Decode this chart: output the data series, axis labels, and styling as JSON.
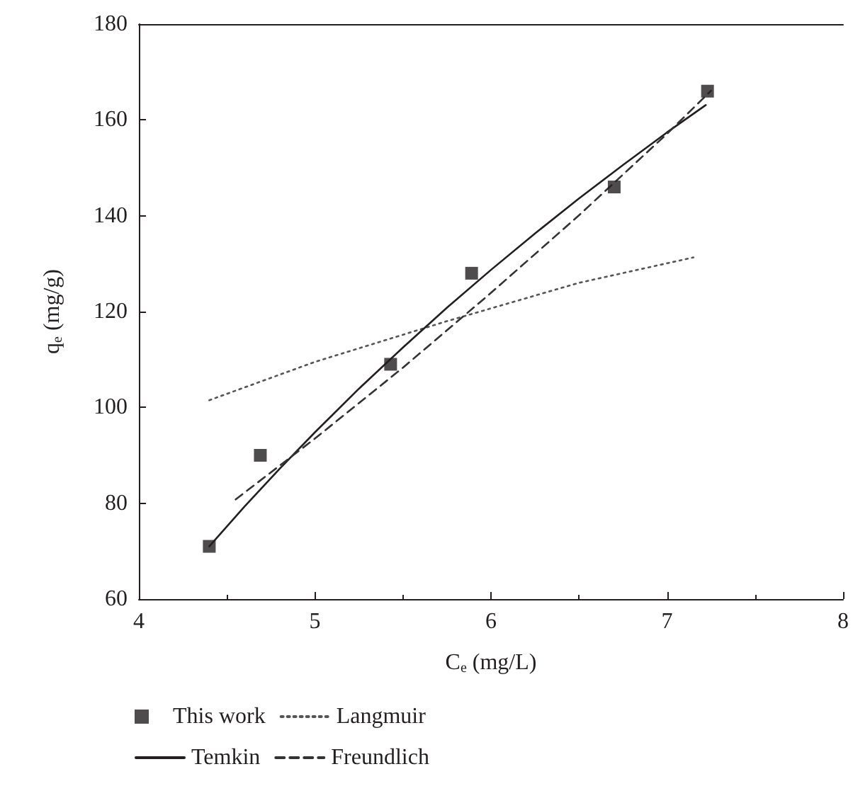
{
  "chart_data": {
    "type": "line",
    "xlabel": "C$_{e}$ (mg/L)",
    "ylabel": "q$_{e}$ (mg/g)",
    "xlim": [
      4,
      8
    ],
    "xticks": [
      4,
      5,
      6,
      7,
      8
    ],
    "ylim": [
      60,
      180
    ],
    "yticks": [
      60,
      80,
      100,
      120,
      140,
      160,
      180
    ],
    "grid": false,
    "legend": "bottom",
    "series": [
      {
        "name": "This work",
        "type": "scatter",
        "marker": "square",
        "color": "#231f20",
        "x": [
          4.4,
          4.69,
          5.43,
          5.89,
          6.7,
          7.23
        ],
        "values": [
          71,
          90,
          109,
          128,
          146,
          166
        ]
      },
      {
        "name": "Langmuir",
        "line_style": "dotted",
        "marker": "none",
        "color": "#555555",
        "x": [
          4.4,
          5.0,
          5.75,
          6.5,
          7.15
        ],
        "values": [
          101.5,
          109.5,
          118,
          126,
          131.3
        ]
      },
      {
        "name": "Temkin",
        "line_style": "solid",
        "marker": "none",
        "color": "#231f20",
        "x": [
          4.4,
          4.6,
          4.8,
          5.0,
          5.25,
          5.5,
          5.75,
          6.0,
          6.25,
          6.5,
          6.75,
          7.0,
          7.22
        ],
        "values": [
          71,
          79.3,
          87.2,
          94.8,
          103.9,
          112.5,
          120.8,
          128.7,
          136.3,
          143.6,
          150.6,
          157.4,
          163.1
        ]
      },
      {
        "name": "Freundlich",
        "line_style": "dashed",
        "marker": "none",
        "color": "#333333",
        "x": [
          4.55,
          5.0,
          5.5,
          6.0,
          6.5,
          7.0,
          7.25
        ],
        "values": [
          80.8,
          93.5,
          108.3,
          123.9,
          140.1,
          157.1,
          166.1
        ]
      }
    ]
  }
}
